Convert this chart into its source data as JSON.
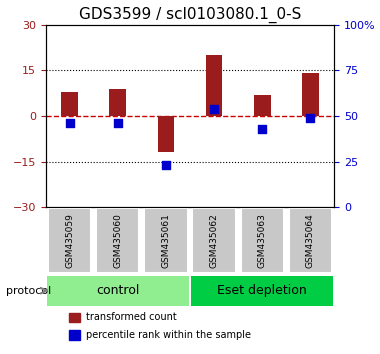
{
  "title": "GDS3599 / scl0103080.1_0-S",
  "samples": [
    "GSM435059",
    "GSM435060",
    "GSM435061",
    "GSM435062",
    "GSM435063",
    "GSM435064"
  ],
  "red_values": [
    8.0,
    9.0,
    -12.0,
    20.0,
    7.0,
    14.0
  ],
  "blue_values": [
    46,
    46,
    23,
    54,
    43,
    49
  ],
  "ylim_left": [
    -30,
    30
  ],
  "ylim_right": [
    0,
    100
  ],
  "yticks_left": [
    -30,
    -15,
    0,
    15,
    30
  ],
  "yticks_right": [
    0,
    25,
    50,
    75,
    100
  ],
  "ytick_labels_right": [
    "0",
    "25",
    "50",
    "75",
    "100%"
  ],
  "red_color": "#9B1C1C",
  "blue_color": "#0000CD",
  "dashed_line_color": "#CC0000",
  "groups": [
    {
      "label": "control",
      "samples": [
        "GSM435059",
        "GSM435060",
        "GSM435061"
      ],
      "color": "#90EE90"
    },
    {
      "label": "Eset depletion",
      "samples": [
        "GSM435062",
        "GSM435063",
        "GSM435064"
      ],
      "color": "#00CC44"
    }
  ],
  "protocol_label": "protocol",
  "legend_red": "transformed count",
  "legend_blue": "percentile rank within the sample",
  "bar_width": 0.35,
  "title_fontsize": 11,
  "tick_fontsize": 8,
  "label_fontsize": 8,
  "group_label_fontsize": 9
}
